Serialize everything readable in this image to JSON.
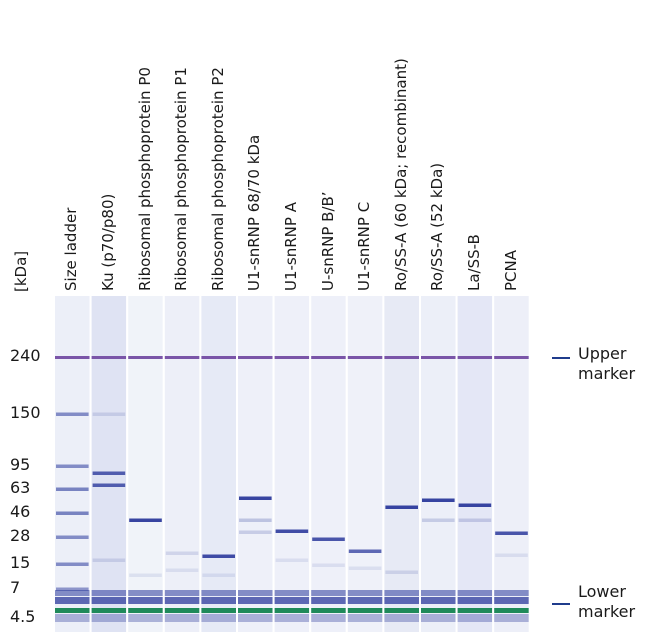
{
  "unit_label": "[kDa]",
  "lanes": [
    {
      "label": "Size ladder"
    },
    {
      "label": "Ku (p70/p80)"
    },
    {
      "label": "Ribosomal phosphoprotein P0"
    },
    {
      "label": "Ribosomal phosphoprotein P1"
    },
    {
      "label": "Ribosomal phosphoprotein P2"
    },
    {
      "label": "U1-snRNP 68/70 kDa"
    },
    {
      "label": "U1-snRNP A"
    },
    {
      "label": "U-snRNP B/B’"
    },
    {
      "label": "U1-snRNP C"
    },
    {
      "label": "Ro/SS-A (60 kDa; recombinant)"
    },
    {
      "label": "Ro/SS-A (52 kDa)"
    },
    {
      "label": "La/SS-B"
    },
    {
      "label": "PCNA"
    }
  ],
  "y_ticks": [
    "240",
    "150",
    "95",
    "63",
    "46",
    "28",
    "15",
    "7",
    "4.5"
  ],
  "markers": {
    "upper": {
      "line1": "Upper",
      "line2": "marker"
    },
    "lower": {
      "line1": "Lower",
      "line2": "marker"
    }
  },
  "colors": {
    "band": "#2c3a9c",
    "upper_marker": "#7a55a8",
    "lower_marker": "#1f8a5a",
    "lane_bg": "#eceff8"
  }
}
